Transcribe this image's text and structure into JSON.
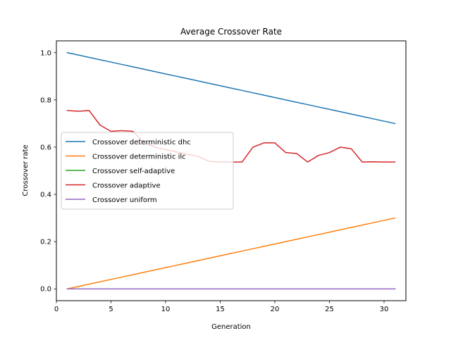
{
  "chart_data": {
    "type": "line",
    "title": "Average Crossover Rate",
    "xlabel": "Generation",
    "ylabel": "Crossover rate",
    "xlim": [
      0,
      32
    ],
    "ylim": [
      -0.05,
      1.05
    ],
    "xticks": [
      0,
      5,
      10,
      15,
      20,
      25,
      30
    ],
    "yticks": [
      0.0,
      0.2,
      0.4,
      0.6,
      0.8,
      1.0
    ],
    "xtick_labels": [
      "0",
      "5",
      "10",
      "15",
      "20",
      "25",
      "30"
    ],
    "ytick_labels": [
      "0.0",
      "0.2",
      "0.4",
      "0.6",
      "0.8",
      "1.0"
    ],
    "grid": false,
    "legend_position": "center-left",
    "x": [
      1,
      2,
      3,
      4,
      5,
      6,
      7,
      8,
      9,
      10,
      11,
      12,
      13,
      14,
      15,
      16,
      17,
      18,
      19,
      20,
      21,
      22,
      23,
      24,
      25,
      26,
      27,
      28,
      29,
      30,
      31
    ],
    "series": [
      {
        "name": "Crossover deterministic dhc",
        "color": "#1f77b4",
        "values": [
          1.0,
          0.99,
          0.98,
          0.97,
          0.96,
          0.95,
          0.94,
          0.93,
          0.92,
          0.91,
          0.9,
          0.89,
          0.88,
          0.87,
          0.86,
          0.85,
          0.84,
          0.83,
          0.82,
          0.81,
          0.8,
          0.79,
          0.78,
          0.77,
          0.76,
          0.75,
          0.74,
          0.73,
          0.72,
          0.71,
          0.7
        ]
      },
      {
        "name": "Crossover deterministic ilc",
        "color": "#ff7f0e",
        "values": [
          0.0,
          0.01,
          0.02,
          0.03,
          0.04,
          0.05,
          0.06,
          0.07,
          0.08,
          0.09,
          0.1,
          0.11,
          0.12,
          0.13,
          0.14,
          0.15,
          0.16,
          0.17,
          0.18,
          0.19,
          0.2,
          0.21,
          0.22,
          0.23,
          0.24,
          0.25,
          0.26,
          0.27,
          0.28,
          0.29,
          0.3
        ]
      },
      {
        "name": "Crossover self-adaptive",
        "color": "#2ca02c",
        "values": [
          0,
          0,
          0,
          0,
          0,
          0,
          0,
          0,
          0,
          0,
          0,
          0,
          0,
          0,
          0,
          0,
          0,
          0,
          0,
          0,
          0,
          0,
          0,
          0,
          0,
          0,
          0,
          0,
          0,
          0,
          0
        ]
      },
      {
        "name": "Crossover adaptive",
        "color": "#d62728",
        "values": [
          0.755,
          0.752,
          0.755,
          0.693,
          0.667,
          0.67,
          0.667,
          0.62,
          0.6,
          0.59,
          0.58,
          0.57,
          0.56,
          0.54,
          0.537,
          0.537,
          0.537,
          0.6,
          0.618,
          0.618,
          0.577,
          0.573,
          0.537,
          0.565,
          0.577,
          0.6,
          0.593,
          0.537,
          0.538,
          0.537,
          0.537
        ]
      },
      {
        "name": "Crossover uniform",
        "color": "#9467bd",
        "values": [
          0,
          0,
          0,
          0,
          0,
          0,
          0,
          0,
          0,
          0,
          0,
          0,
          0,
          0,
          0,
          0,
          0,
          0,
          0,
          0,
          0,
          0,
          0,
          0,
          0,
          0,
          0,
          0,
          0,
          0,
          0
        ]
      }
    ]
  }
}
